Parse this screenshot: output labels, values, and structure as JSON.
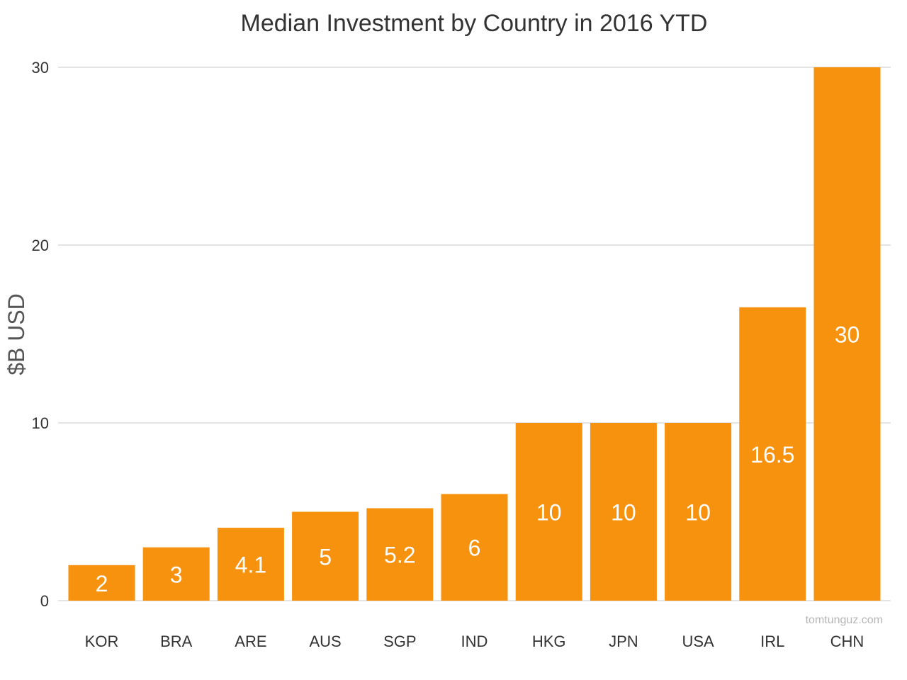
{
  "chart_data": {
    "type": "bar",
    "title": "Median Investment by Country in 2016 YTD",
    "xlabel": "",
    "ylabel": "$B USD",
    "categories": [
      "KOR",
      "BRA",
      "ARE",
      "AUS",
      "SGP",
      "IND",
      "HKG",
      "JPN",
      "USA",
      "IRL",
      "CHN"
    ],
    "values": [
      2,
      3,
      4.1,
      5,
      5.2,
      6,
      10,
      10,
      10,
      16.5,
      30
    ],
    "data_labels": [
      "2",
      "3",
      "4.1",
      "5",
      "5.2",
      "6",
      "10",
      "10",
      "10",
      "16.5",
      "30"
    ],
    "ylim": [
      0,
      30
    ],
    "yticks": [
      0,
      10,
      20,
      30
    ],
    "ytick_labels": [
      "0",
      "10",
      "20",
      "30"
    ],
    "grid": true,
    "legend": "none",
    "bar_color": "#f7920e",
    "label_color": "#ffffff",
    "gridline_color": "#c8c8c8"
  },
  "watermark": "tomtunguz.com"
}
